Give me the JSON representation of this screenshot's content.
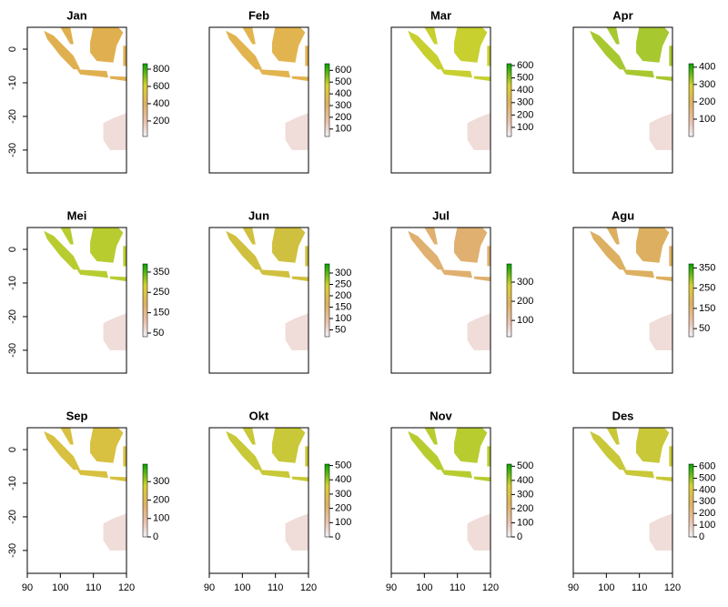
{
  "chart_data": [
    {
      "type": "raster",
      "title": "Jan",
      "xlim": [
        90,
        120
      ],
      "ylim": [
        -36.8,
        6.5
      ],
      "yticks": [
        0,
        -10,
        -20,
        -30
      ],
      "zlim": [
        20,
        863
      ],
      "zticks": [
        200,
        400,
        600,
        800
      ],
      "color": "#e0b050"
    },
    {
      "type": "raster",
      "title": "Feb",
      "xlim": [
        90,
        120
      ],
      "ylim": [
        -36.8,
        6.5
      ],
      "zlim": [
        36,
        657
      ],
      "zticks": [
        100,
        200,
        300,
        400,
        500,
        600
      ],
      "color": "#e2b450"
    },
    {
      "type": "raster",
      "title": "Mar",
      "xlim": [
        90,
        120
      ],
      "ylim": [
        -36.8,
        6.5
      ],
      "zlim": [
        26,
        615
      ],
      "zticks": [
        100,
        200,
        300,
        400,
        500,
        600
      ],
      "color": "#c8d030"
    },
    {
      "type": "raster",
      "title": "Apr",
      "xlim": [
        90,
        120
      ],
      "ylim": [
        -36.8,
        6.5
      ],
      "zlim": [
        0,
        420
      ],
      "zticks": [
        100,
        200,
        300,
        400
      ],
      "color": "#a8c830"
    },
    {
      "type": "raster",
      "title": "Mei",
      "xlim": [
        90,
        120
      ],
      "ylim": [
        -36.8,
        6.5
      ],
      "yticks": [
        0,
        -10,
        -20,
        -30
      ],
      "zlim": [
        32,
        390
      ],
      "zticks": [
        50,
        150,
        250,
        350
      ],
      "color": "#b8cc30"
    },
    {
      "type": "raster",
      "title": "Jun",
      "xlim": [
        90,
        120
      ],
      "ylim": [
        -36.8,
        6.5
      ],
      "zlim": [
        20,
        340
      ],
      "zticks": [
        50,
        100,
        150,
        200,
        250,
        300
      ],
      "color": "#d0c040"
    },
    {
      "type": "raster",
      "title": "Jul",
      "xlim": [
        90,
        120
      ],
      "ylim": [
        -36.8,
        6.5
      ],
      "zlim": [
        15,
        395
      ],
      "zticks": [
        100,
        200,
        300
      ],
      "color": "#e0b070"
    },
    {
      "type": "raster",
      "title": "Agu",
      "xlim": [
        90,
        120
      ],
      "ylim": [
        -36.8,
        6.5
      ],
      "zlim": [
        10,
        370
      ],
      "zticks": [
        50,
        150,
        250,
        350
      ],
      "color": "#dcb060"
    },
    {
      "type": "raster",
      "title": "Sep",
      "xlim": [
        90,
        120
      ],
      "ylim": [
        -36.8,
        6.5
      ],
      "xticks": [
        90,
        100,
        110,
        120
      ],
      "yticks": [
        0,
        -10,
        -20,
        -30
      ],
      "zlim": [
        0,
        395
      ],
      "zticks": [
        0,
        100,
        200,
        300
      ],
      "color": "#d8c040"
    },
    {
      "type": "raster",
      "title": "Okt",
      "xlim": [
        90,
        120
      ],
      "ylim": [
        -36.8,
        6.5
      ],
      "xticks": [
        90,
        100,
        110,
        120
      ],
      "zlim": [
        0,
        510
      ],
      "zticks": [
        0,
        100,
        200,
        300,
        400,
        500
      ],
      "color": "#c8c838"
    },
    {
      "type": "raster",
      "title": "Nov",
      "xlim": [
        90,
        120
      ],
      "ylim": [
        -36.8,
        6.5
      ],
      "xticks": [
        90,
        100,
        110,
        120
      ],
      "zlim": [
        0,
        515
      ],
      "zticks": [
        0,
        100,
        200,
        300,
        400,
        500
      ],
      "color": "#b8cc30"
    },
    {
      "type": "raster",
      "title": "Des",
      "xlim": [
        90,
        120
      ],
      "ylim": [
        -36.8,
        6.5
      ],
      "xticks": [
        90,
        100,
        110,
        120
      ],
      "zlim": [
        0,
        620
      ],
      "zticks": [
        0,
        100,
        200,
        300,
        400,
        500,
        600
      ],
      "color": "#c8c838"
    }
  ]
}
